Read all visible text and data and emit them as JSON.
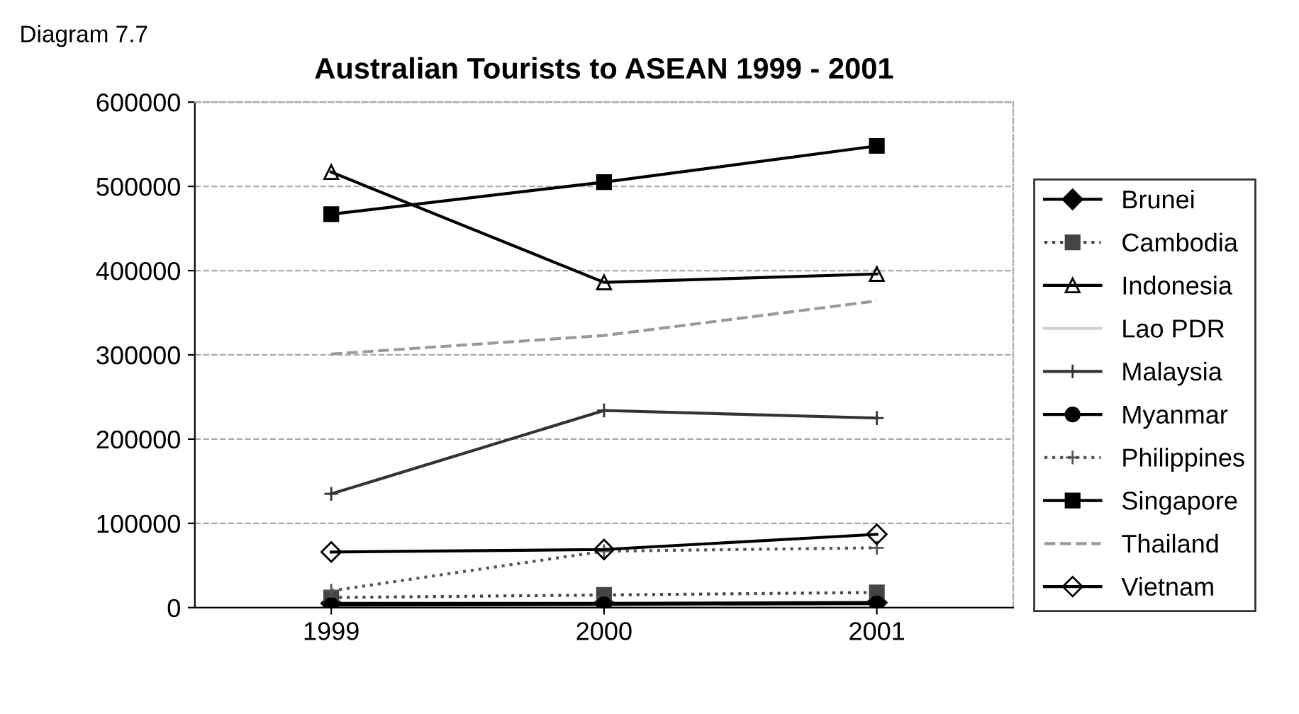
{
  "chart_data": {
    "type": "line",
    "title": "Australian Tourists to ASEAN 1999 - 2001",
    "annotations": [
      "Diagram 7.7"
    ],
    "categories": [
      "1999",
      "2000",
      "2001"
    ],
    "ylim": [
      0,
      600000
    ],
    "yticks": [
      0,
      100000,
      200000,
      300000,
      400000,
      500000,
      600000
    ],
    "grid": "y",
    "legend": "right",
    "series": [
      {
        "name": "Brunei",
        "color": "#000000",
        "marker": "diamond",
        "line_style": "solid",
        "values": [
          5000,
          5000,
          6000
        ]
      },
      {
        "name": "Cambodia",
        "color": "#444444",
        "marker": "square",
        "line_style": "dotted",
        "values": [
          12000,
          15000,
          18000
        ]
      },
      {
        "name": "Indonesia",
        "color": "#000000",
        "marker": "triangle",
        "line_style": "solid",
        "values": [
          517000,
          386000,
          396000
        ]
      },
      {
        "name": "Lao PDR",
        "color": "#d0d0d0",
        "marker": "none",
        "line_style": "solid",
        "values": [
          2000,
          2000,
          3000
        ]
      },
      {
        "name": "Malaysia",
        "color": "#333333",
        "marker": "cross",
        "line_style": "solid",
        "values": [
          135000,
          234000,
          225000
        ]
      },
      {
        "name": "Myanmar",
        "color": "#000000",
        "marker": "circle",
        "line_style": "solid",
        "values": [
          3000,
          4000,
          5000
        ]
      },
      {
        "name": "Philippines",
        "color": "#555555",
        "marker": "cross",
        "line_style": "dotted",
        "values": [
          20000,
          67000,
          71000
        ]
      },
      {
        "name": "Singapore",
        "color": "#000000",
        "marker": "square",
        "line_style": "solid",
        "values": [
          467000,
          505000,
          548000
        ]
      },
      {
        "name": "Thailand",
        "color": "#999999",
        "marker": "none",
        "line_style": "dashed",
        "values": [
          301000,
          323000,
          364000
        ]
      },
      {
        "name": "Vietnam",
        "color": "#000000",
        "marker": "diamond",
        "line_style": "solid",
        "values": [
          66000,
          69000,
          87000
        ]
      }
    ]
  }
}
